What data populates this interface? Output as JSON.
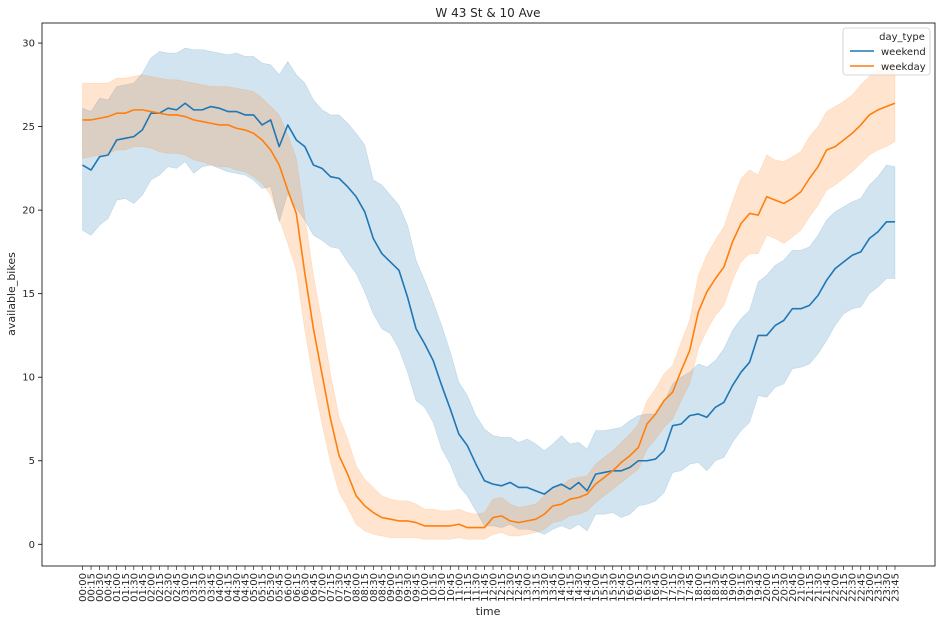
{
  "chart_data": {
    "type": "line",
    "title": "W 43 St & 10 Ave",
    "xlabel": "time",
    "ylabel": "available_bikes",
    "ylim": [
      -1.3,
      31.2
    ],
    "yticks": [
      0,
      5,
      10,
      15,
      20,
      25,
      30
    ],
    "grid": false,
    "legend": {
      "placement": "top-right",
      "title": "day_type",
      "entries": [
        "weekend",
        "weekday"
      ]
    },
    "x": [
      "00:00",
      "00:15",
      "00:30",
      "00:45",
      "01:00",
      "01:15",
      "01:30",
      "01:45",
      "02:00",
      "02:15",
      "02:30",
      "02:45",
      "03:00",
      "03:15",
      "03:30",
      "03:45",
      "04:00",
      "04:15",
      "04:30",
      "04:45",
      "05:00",
      "05:15",
      "05:30",
      "05:45",
      "06:00",
      "06:15",
      "06:30",
      "06:45",
      "07:00",
      "07:15",
      "07:30",
      "07:45",
      "08:00",
      "08:15",
      "08:30",
      "08:45",
      "09:00",
      "09:15",
      "09:30",
      "09:45",
      "10:00",
      "10:15",
      "10:30",
      "10:45",
      "11:00",
      "11:15",
      "11:30",
      "11:45",
      "12:00",
      "12:15",
      "12:30",
      "12:45",
      "13:00",
      "13:15",
      "13:30",
      "13:45",
      "14:00",
      "14:15",
      "14:30",
      "14:45",
      "15:00",
      "15:15",
      "15:30",
      "15:45",
      "16:00",
      "16:15",
      "16:30",
      "16:45",
      "17:00",
      "17:15",
      "17:30",
      "17:45",
      "18:00",
      "18:15",
      "18:30",
      "18:45",
      "19:00",
      "19:15",
      "19:30",
      "19:45",
      "20:00",
      "20:15",
      "20:30",
      "20:45",
      "21:00",
      "21:15",
      "21:30",
      "21:45",
      "22:00",
      "22:15",
      "22:30",
      "22:45",
      "23:00",
      "23:15",
      "23:30",
      "23:45"
    ],
    "series": [
      {
        "name": "weekend",
        "color": "#1f77b4",
        "values": [
          22.7,
          22.4,
          23.2,
          23.3,
          24.2,
          24.3,
          24.4,
          24.8,
          25.8,
          25.8,
          26.1,
          26.0,
          26.4,
          26.0,
          26.0,
          26.2,
          26.1,
          25.9,
          25.9,
          25.7,
          25.7,
          25.1,
          25.4,
          23.8,
          25.1,
          24.2,
          23.8,
          22.7,
          22.5,
          22.0,
          21.9,
          21.4,
          20.8,
          19.9,
          18.3,
          17.4,
          16.9,
          16.4,
          14.8,
          12.9,
          12.0,
          11.0,
          9.5,
          8.1,
          6.6,
          5.9,
          4.8,
          3.8,
          3.6,
          3.5,
          3.7,
          3.4,
          3.4,
          3.2,
          3.0,
          3.4,
          3.6,
          3.3,
          3.7,
          3.2,
          4.2,
          4.3,
          4.4,
          4.4,
          4.6,
          5.0,
          5.0,
          5.1,
          5.6,
          7.1,
          7.2,
          7.7,
          7.8,
          7.6,
          8.2,
          8.5,
          9.5,
          10.3,
          10.9,
          12.5,
          12.5,
          13.1,
          13.4,
          14.1,
          14.1,
          14.3,
          14.9,
          15.8,
          16.5,
          16.9,
          17.3,
          17.5,
          18.3,
          18.7,
          19.3,
          19.3
        ],
        "lower": [
          18.8,
          18.5,
          19.1,
          19.5,
          20.6,
          20.7,
          20.4,
          20.9,
          21.8,
          22.1,
          22.6,
          22.5,
          22.9,
          22.2,
          22.6,
          22.7,
          22.5,
          22.3,
          22.2,
          22.1,
          21.8,
          21.3,
          21.4,
          19.3,
          21.0,
          20.1,
          19.4,
          18.5,
          18.2,
          17.8,
          17.7,
          16.9,
          16.2,
          15.1,
          13.8,
          12.9,
          12.6,
          11.7,
          10.3,
          8.6,
          8.2,
          7.3,
          5.7,
          4.8,
          3.5,
          2.9,
          2.0,
          1.1,
          1.1,
          1.0,
          1.2,
          0.9,
          0.9,
          0.8,
          0.6,
          0.9,
          1.1,
          0.9,
          1.2,
          0.8,
          1.8,
          1.8,
          1.9,
          1.6,
          1.8,
          2.3,
          2.4,
          2.6,
          3.1,
          4.3,
          4.4,
          4.8,
          4.9,
          4.4,
          5.0,
          5.2,
          6.1,
          6.8,
          7.3,
          8.9,
          8.8,
          9.4,
          9.6,
          10.5,
          10.6,
          10.8,
          11.4,
          12.2,
          13.1,
          13.8,
          14.1,
          14.2,
          15.0,
          15.4,
          15.9,
          15.9
        ],
        "upper": [
          26.1,
          25.9,
          26.7,
          26.6,
          27.4,
          27.5,
          27.6,
          28.2,
          29.1,
          29.5,
          29.4,
          29.4,
          29.7,
          29.6,
          29.6,
          29.5,
          29.4,
          29.3,
          29.4,
          29.2,
          29.2,
          28.8,
          28.7,
          28.1,
          28.9,
          28.1,
          27.6,
          26.6,
          26.0,
          25.7,
          25.7,
          25.2,
          24.6,
          23.9,
          21.8,
          21.5,
          20.9,
          20.3,
          19.1,
          17.0,
          15.8,
          14.5,
          13.1,
          11.5,
          9.7,
          8.9,
          7.7,
          6.9,
          6.5,
          6.4,
          6.4,
          6.1,
          6.3,
          6.0,
          5.6,
          6.0,
          6.5,
          6.0,
          6.1,
          5.7,
          6.8,
          6.8,
          6.9,
          7.0,
          7.4,
          7.7,
          7.8,
          7.8,
          8.5,
          9.6,
          10.0,
          10.3,
          10.8,
          10.6,
          11.0,
          11.7,
          12.8,
          13.5,
          14.0,
          15.7,
          16.1,
          16.7,
          17.0,
          17.6,
          17.6,
          17.8,
          18.5,
          19.4,
          19.9,
          20.2,
          20.5,
          20.7,
          21.5,
          22.0,
          22.7,
          22.6
        ]
      },
      {
        "name": "weekday",
        "color": "#ff7f0e",
        "values": [
          25.4,
          25.4,
          25.5,
          25.6,
          25.8,
          25.8,
          26.0,
          26.0,
          25.9,
          25.8,
          25.7,
          25.7,
          25.6,
          25.4,
          25.3,
          25.2,
          25.1,
          25.1,
          24.9,
          24.8,
          24.6,
          24.2,
          23.6,
          22.7,
          21.2,
          19.8,
          16.2,
          12.9,
          10.2,
          7.5,
          5.3,
          4.2,
          2.9,
          2.3,
          1.9,
          1.6,
          1.5,
          1.4,
          1.4,
          1.3,
          1.1,
          1.1,
          1.1,
          1.1,
          1.2,
          1.0,
          1.0,
          1.0,
          1.6,
          1.7,
          1.4,
          1.3,
          1.4,
          1.5,
          1.8,
          2.3,
          2.4,
          2.7,
          2.8,
          3.0,
          3.6,
          4.0,
          4.4,
          4.9,
          5.3,
          5.8,
          7.2,
          7.8,
          8.6,
          9.1,
          10.4,
          11.6,
          13.9,
          15.1,
          15.9,
          16.6,
          18.1,
          19.2,
          19.8,
          19.7,
          20.8,
          20.6,
          20.4,
          20.7,
          21.1,
          21.9,
          22.6,
          23.6,
          23.8,
          24.2,
          24.6,
          25.1,
          25.7,
          26.0,
          26.2,
          26.4
        ],
        "lower": [
          23.1,
          23.2,
          23.3,
          23.4,
          23.6,
          23.6,
          23.8,
          23.8,
          23.7,
          23.5,
          23.4,
          23.4,
          23.3,
          23.0,
          22.9,
          22.7,
          22.6,
          22.6,
          22.4,
          22.3,
          22.0,
          21.6,
          20.9,
          19.5,
          18.0,
          16.4,
          12.8,
          9.8,
          7.2,
          4.9,
          3.1,
          2.2,
          1.2,
          0.8,
          0.6,
          0.5,
          0.4,
          0.4,
          0.4,
          0.4,
          0.3,
          0.3,
          0.3,
          0.3,
          0.4,
          0.3,
          0.3,
          0.3,
          0.6,
          0.7,
          0.5,
          0.5,
          0.6,
          0.7,
          0.9,
          1.3,
          1.4,
          1.7,
          1.8,
          2.0,
          2.5,
          2.9,
          3.3,
          3.7,
          4.1,
          4.5,
          5.7,
          6.3,
          7.0,
          7.5,
          8.6,
          9.6,
          11.7,
          12.8,
          13.7,
          14.3,
          15.8,
          16.9,
          17.4,
          17.4,
          18.5,
          18.3,
          18.0,
          18.4,
          18.8,
          19.6,
          20.3,
          21.2,
          21.5,
          21.9,
          22.3,
          22.8,
          23.3,
          23.6,
          23.8,
          24.1
        ],
        "upper": [
          27.6,
          27.6,
          27.6,
          27.6,
          27.9,
          27.9,
          28.0,
          28.1,
          28.0,
          27.9,
          27.8,
          27.8,
          27.7,
          27.6,
          27.5,
          27.4,
          27.4,
          27.4,
          27.3,
          27.2,
          27.1,
          26.7,
          26.2,
          25.7,
          24.5,
          23.1,
          19.6,
          16.1,
          13.3,
          10.2,
          7.6,
          6.3,
          4.7,
          3.9,
          3.4,
          2.9,
          2.7,
          2.6,
          2.6,
          2.4,
          2.1,
          2.1,
          2.0,
          2.0,
          2.1,
          1.9,
          1.8,
          1.9,
          2.7,
          2.8,
          2.4,
          2.2,
          2.3,
          2.4,
          2.9,
          3.4,
          3.5,
          3.9,
          4.0,
          4.1,
          4.8,
          5.2,
          5.6,
          6.1,
          6.6,
          7.2,
          8.6,
          9.3,
          10.2,
          10.7,
          12.1,
          13.4,
          16.1,
          17.3,
          18.2,
          19.0,
          20.5,
          21.9,
          22.4,
          22.1,
          23.3,
          23.0,
          22.9,
          23.2,
          23.5,
          24.4,
          25.0,
          25.9,
          26.2,
          26.5,
          26.9,
          27.5,
          28.0,
          28.4,
          28.6,
          28.8
        ]
      }
    ]
  }
}
